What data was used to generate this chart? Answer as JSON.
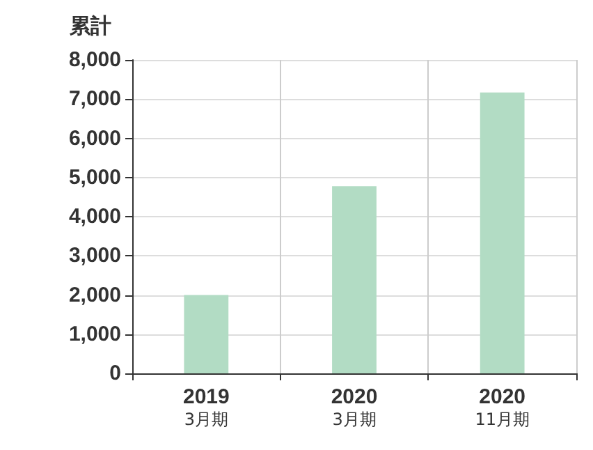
{
  "chart_data": {
    "type": "bar",
    "ylabel": "累計",
    "categories": [
      "2019\n3月期",
      "2020\n3月期",
      "2020\n11月期"
    ],
    "values": [
      2000,
      4780,
      7170
    ],
    "color": "#b2dcc4",
    "ylim": [
      0,
      8000
    ],
    "yticks": [
      0,
      {
        "value": 1000,
        "label": "1,000"
      },
      {
        "value": 2000,
        "label": "2,000"
      },
      {
        "value": 3000,
        "label": "3,000"
      },
      {
        "value": 4000,
        "label": "4,000"
      },
      {
        "value": 5000,
        "label": "5,000"
      },
      {
        "value": 6000,
        "label": "6,000"
      },
      {
        "value": 7000,
        "label": "7,000"
      },
      {
        "value": 8000,
        "label": "8,000"
      }
    ],
    "grid": true
  }
}
